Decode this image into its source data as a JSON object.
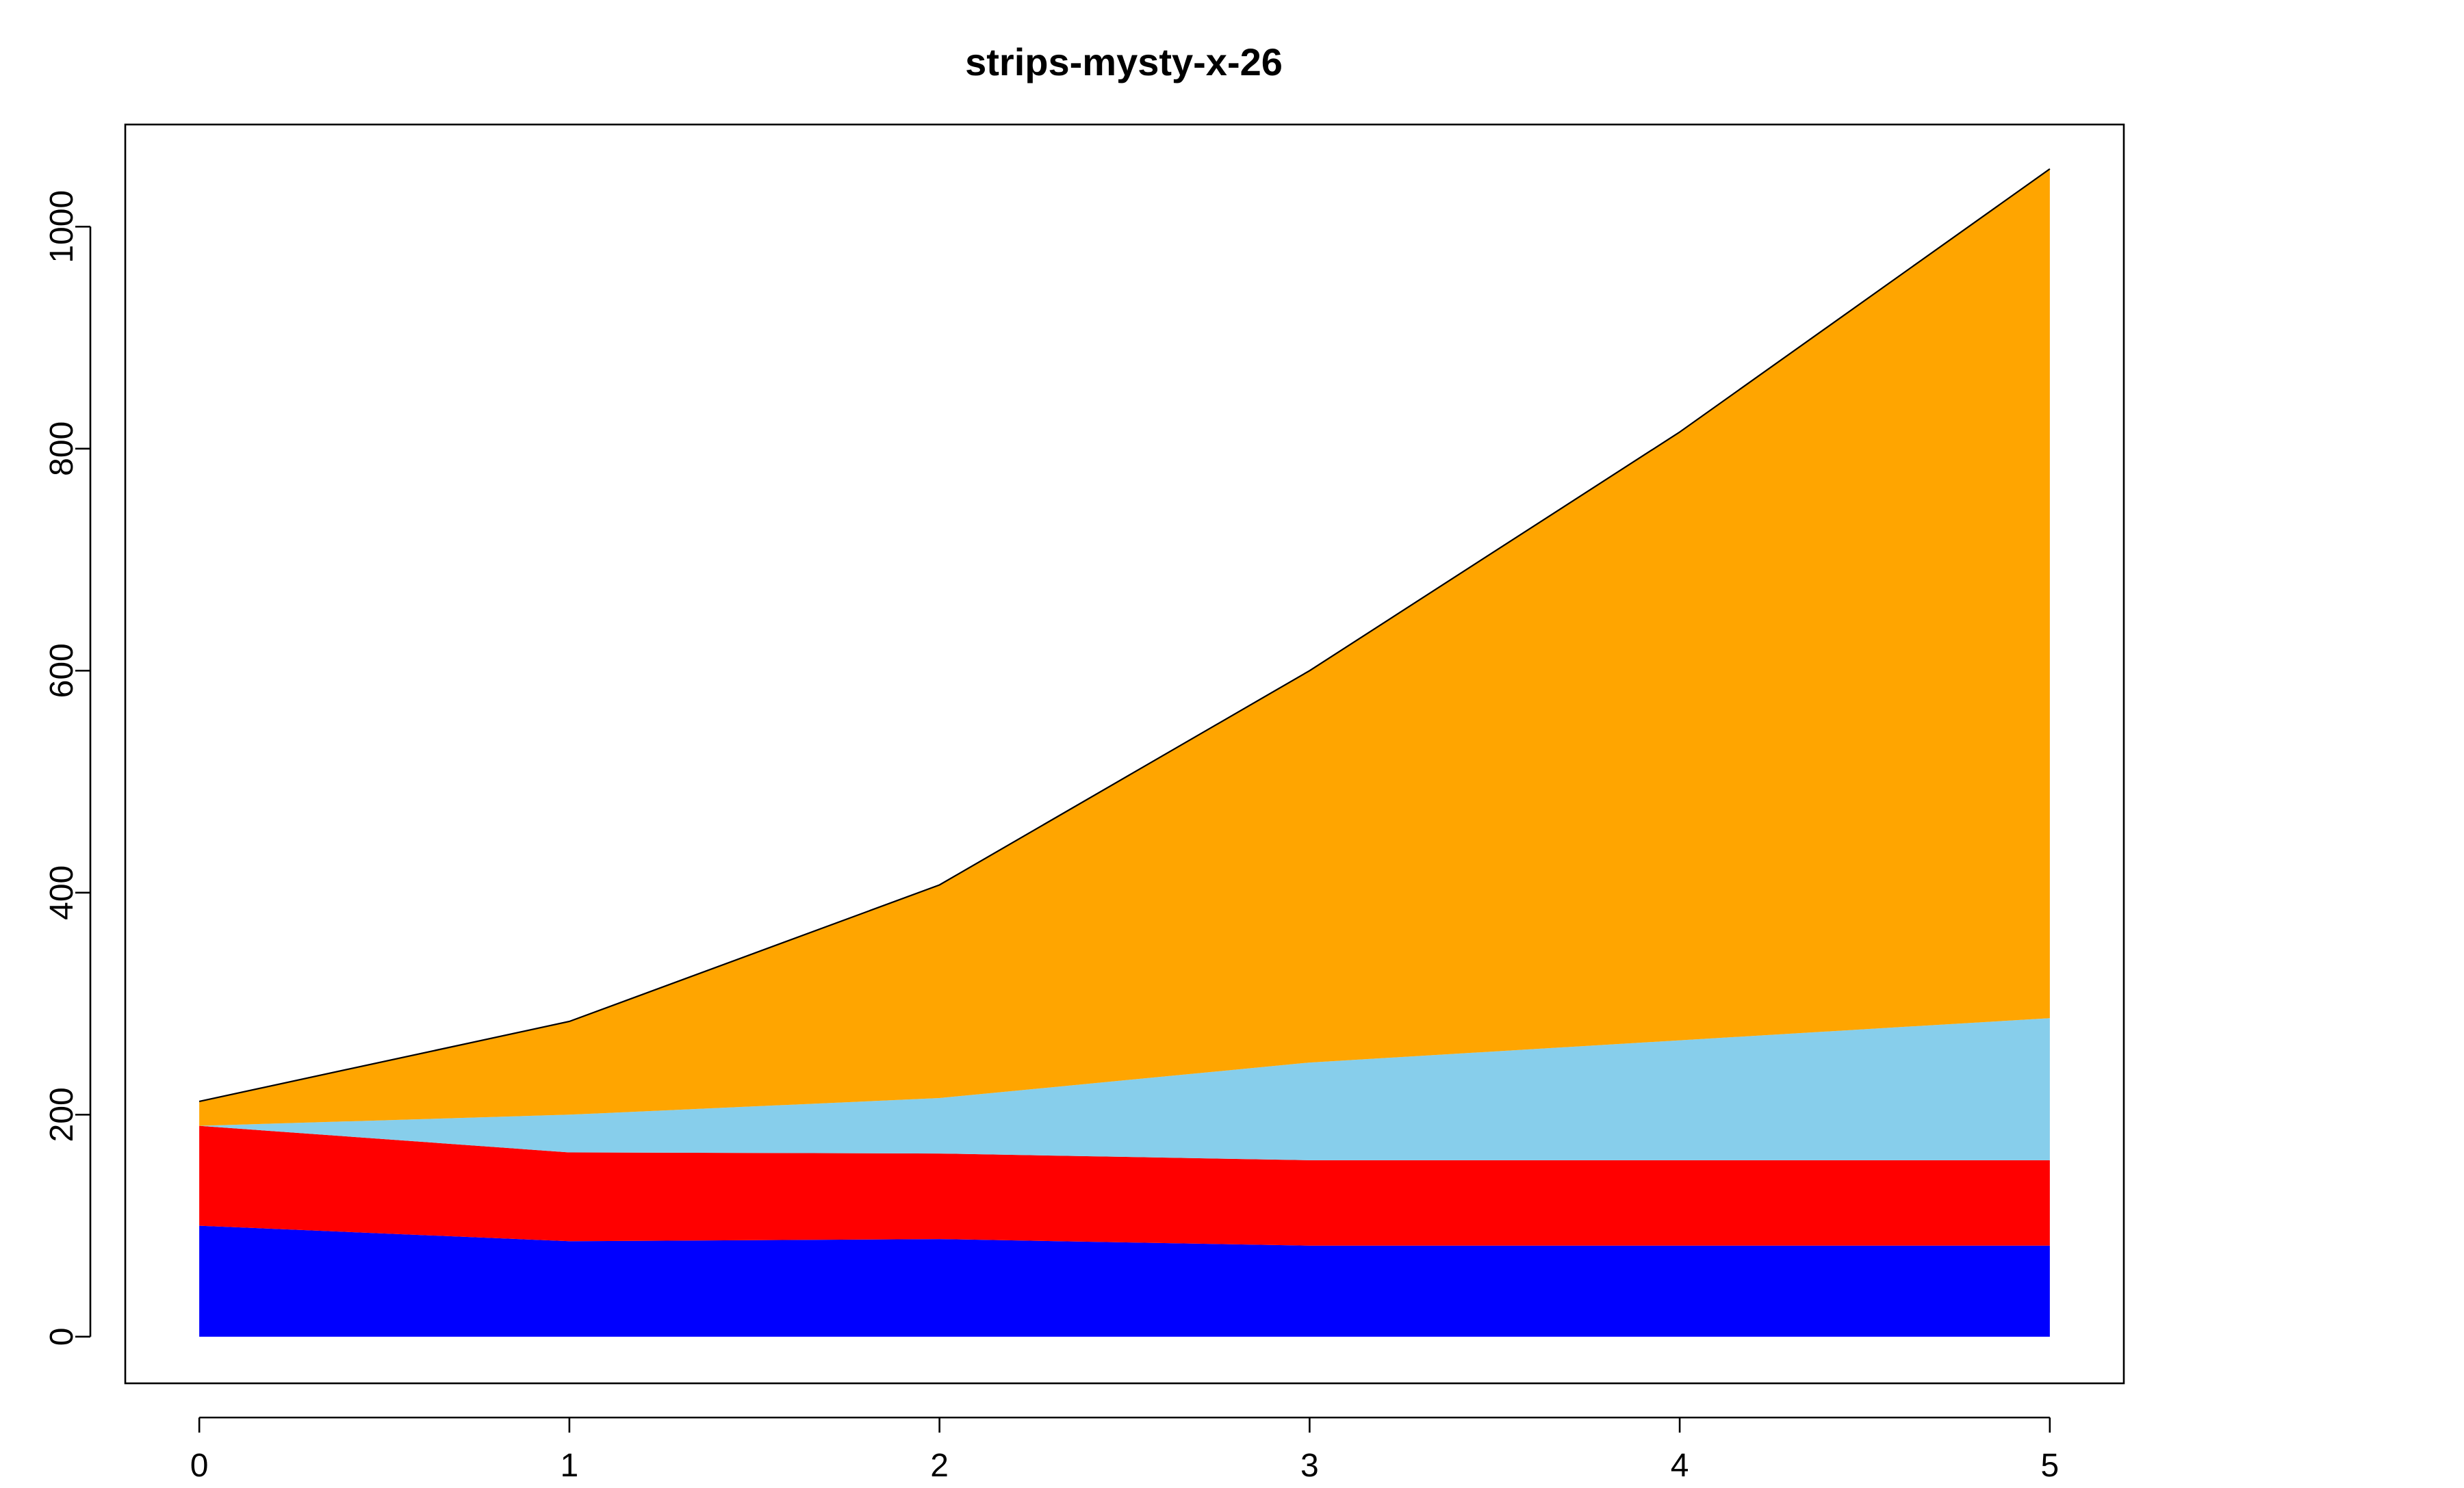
{
  "chart_data": {
    "type": "area",
    "stacked": true,
    "title": "strips-mysty-x-26",
    "xlabel": "",
    "ylabel": "",
    "x": [
      0,
      1,
      2,
      3,
      4,
      5
    ],
    "x_ticks": [
      "0",
      "1",
      "2",
      "3",
      "4",
      "5"
    ],
    "y_ticks": [
      "0",
      "200",
      "400",
      "600",
      "800",
      "1000"
    ],
    "xlim": [
      -0.2,
      5.2
    ],
    "ylim": [
      -42,
      1092
    ],
    "grid": false,
    "legend": "none",
    "series": [
      {
        "color": "#0000ff",
        "values": [
          100,
          86,
          88,
          82,
          82,
          82
        ]
      },
      {
        "color": "#ff0000",
        "values": [
          90,
          80,
          77,
          77,
          77,
          77
        ]
      },
      {
        "color": "#87ceeb",
        "values": [
          0,
          34,
          50,
          88,
          108,
          128
        ]
      },
      {
        "color": "#ffa500",
        "values": [
          22,
          84,
          192,
          353,
          548,
          765
        ]
      }
    ]
  }
}
